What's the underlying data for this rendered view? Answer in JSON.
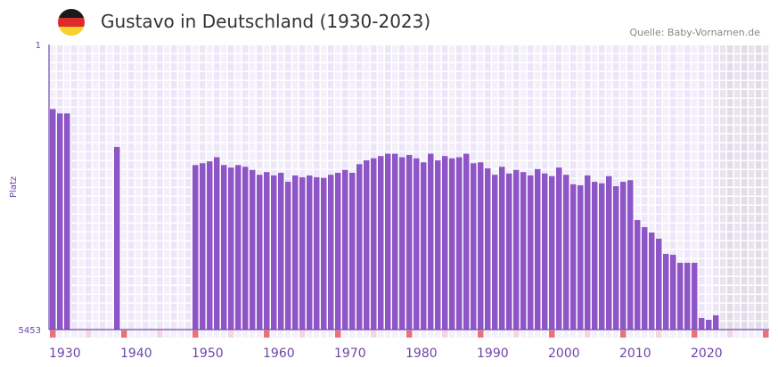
{
  "header": {
    "title": "Gustavo in Deutschland (1930-2023)",
    "source": "Quelle: Baby-Vornamen.de",
    "flag_icon": "germany-flag-icon"
  },
  "colors": {
    "bar": "#8e55c7",
    "axis": "#6b46a8",
    "decade_marker": "#e8717a",
    "half_decade_marker": "#f5d6e0",
    "cell_a": "#f4f0fb",
    "cell_b": "#ece6f8",
    "future_a": "#e8e4ef",
    "future_b": "#e1dbea"
  },
  "chart_data": {
    "type": "bar",
    "title": "Gustavo in Deutschland (1930-2023)",
    "xlabel": "",
    "ylabel": "Platz",
    "y_scale": "log",
    "y_inverted": true,
    "ylim": [
      1,
      5453
    ],
    "y_ticks": [
      "1",
      "5453"
    ],
    "xlim": [
      1930,
      2030
    ],
    "data_last_year": 2023,
    "x_ticks": [
      "1930",
      "1940",
      "1950",
      "1960",
      "1970",
      "1980",
      "1990",
      "2000",
      "2010",
      "2020"
    ],
    "grid": true,
    "series": [
      {
        "name": "Gustavo",
        "points": [
          [
            1930,
            7
          ],
          [
            1931,
            8
          ],
          [
            1932,
            8
          ],
          [
            1939,
            22
          ],
          [
            1950,
            38
          ],
          [
            1951,
            36
          ],
          [
            1952,
            34
          ],
          [
            1953,
            30
          ],
          [
            1954,
            38
          ],
          [
            1955,
            41
          ],
          [
            1956,
            38
          ],
          [
            1957,
            40
          ],
          [
            1958,
            44
          ],
          [
            1959,
            51
          ],
          [
            1960,
            47
          ],
          [
            1961,
            52
          ],
          [
            1962,
            48
          ],
          [
            1963,
            63
          ],
          [
            1964,
            52
          ],
          [
            1965,
            55
          ],
          [
            1966,
            52
          ],
          [
            1967,
            55
          ],
          [
            1968,
            56
          ],
          [
            1969,
            51
          ],
          [
            1970,
            48
          ],
          [
            1971,
            44
          ],
          [
            1972,
            48
          ],
          [
            1973,
            37
          ],
          [
            1974,
            33
          ],
          [
            1975,
            31
          ],
          [
            1976,
            29
          ],
          [
            1977,
            27
          ],
          [
            1978,
            27
          ],
          [
            1979,
            30
          ],
          [
            1980,
            28
          ],
          [
            1981,
            31
          ],
          [
            1982,
            35
          ],
          [
            1983,
            27
          ],
          [
            1984,
            33
          ],
          [
            1985,
            29
          ],
          [
            1986,
            31
          ],
          [
            1987,
            30
          ],
          [
            1988,
            27
          ],
          [
            1989,
            36
          ],
          [
            1990,
            35
          ],
          [
            1991,
            42
          ],
          [
            1992,
            51
          ],
          [
            1993,
            40
          ],
          [
            1994,
            49
          ],
          [
            1995,
            44
          ],
          [
            1996,
            47
          ],
          [
            1997,
            52
          ],
          [
            1998,
            43
          ],
          [
            1999,
            49
          ],
          [
            2000,
            53
          ],
          [
            2001,
            41
          ],
          [
            2002,
            51
          ],
          [
            2003,
            68
          ],
          [
            2004,
            70
          ],
          [
            2005,
            52
          ],
          [
            2006,
            63
          ],
          [
            2007,
            66
          ],
          [
            2008,
            53
          ],
          [
            2009,
            72
          ],
          [
            2010,
            63
          ],
          [
            2011,
            60
          ],
          [
            2012,
            200
          ],
          [
            2013,
            248
          ],
          [
            2014,
            291
          ],
          [
            2015,
            351
          ],
          [
            2016,
            555
          ],
          [
            2017,
            570
          ],
          [
            2018,
            726
          ],
          [
            2019,
            726
          ],
          [
            2020,
            726
          ],
          [
            2021,
            3847
          ],
          [
            2022,
            4062
          ],
          [
            2023,
            3548
          ]
        ]
      }
    ]
  }
}
